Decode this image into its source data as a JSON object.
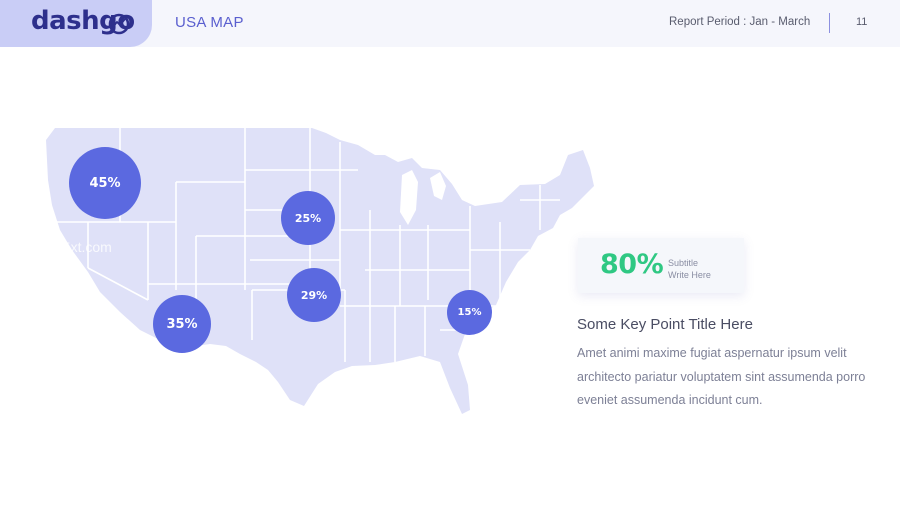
{
  "header": {
    "logo_text": "dashgo",
    "title": "USA MAP",
    "report_period": "Report Period : Jan - March",
    "page_number": "11"
  },
  "map": {
    "watermark": "25xt.com",
    "bubbles": [
      {
        "label": "45%"
      },
      {
        "label": "25%"
      },
      {
        "label": "29%"
      },
      {
        "label": "35%"
      },
      {
        "label": "15%"
      }
    ],
    "colors": {
      "land": "#dfe1f8",
      "bubble": "#5b69e0"
    }
  },
  "stat": {
    "value": "80%",
    "subtitle_line1": "Subtitle",
    "subtitle_line2": "Write Here",
    "color": "#2fc883"
  },
  "key_point": {
    "title": "Some Key Point Title Here",
    "body": "Amet animi maxime fugiat aspernatur ipsum velit architecto pariatur voluptatem sint assumenda porro eveniet assumenda incidunt cum."
  }
}
